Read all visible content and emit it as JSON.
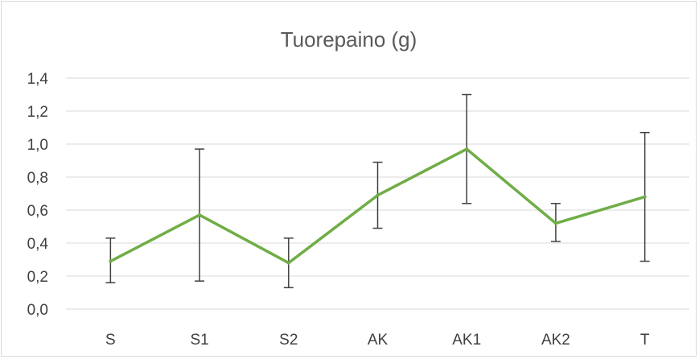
{
  "chart_data": {
    "type": "line",
    "title": "Tuorepaino (g)",
    "xlabel": "",
    "ylabel": "",
    "categories": [
      "S",
      "S1",
      "S2",
      "AK",
      "AK1",
      "AK2",
      "T"
    ],
    "series": [
      {
        "values": [
          0.29,
          0.57,
          0.28,
          0.69,
          0.97,
          0.52,
          0.68
        ],
        "error_low": [
          0.16,
          0.17,
          0.13,
          0.49,
          0.64,
          0.41,
          0.29
        ],
        "error_high": [
          0.43,
          0.97,
          0.43,
          0.89,
          1.3,
          0.64,
          1.07
        ],
        "color": "#70ad47"
      }
    ],
    "ylim": [
      0,
      1.4
    ],
    "yticks": [
      "0,0",
      "0,2",
      "0,4",
      "0,6",
      "0,8",
      "1,0",
      "1,2",
      "1,4"
    ],
    "grid": true,
    "legend": "none",
    "error_bar_color": "#404040"
  }
}
